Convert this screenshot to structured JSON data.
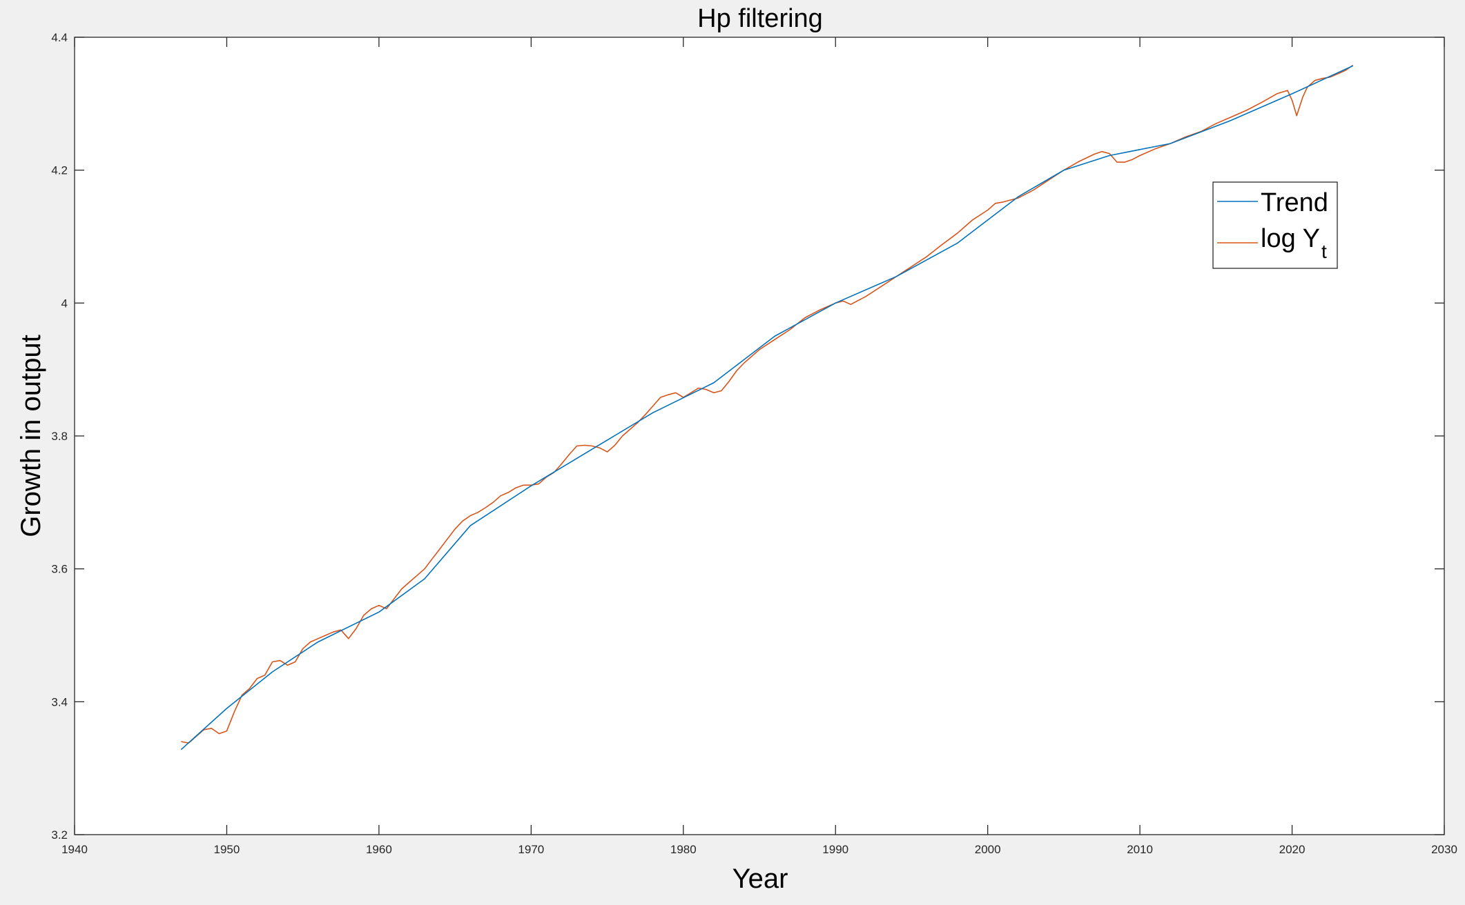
{
  "chart_data": {
    "type": "line",
    "title": "Hp filtering",
    "xlabel": "Year",
    "ylabel": "Growth in output",
    "xlim": [
      1940,
      2030
    ],
    "ylim": [
      3.2,
      4.4
    ],
    "xticks": [
      "1940",
      "1950",
      "1960",
      "1970",
      "1980",
      "1990",
      "2000",
      "2010",
      "2020",
      "2030"
    ],
    "yticks": [
      "3.2",
      "3.4",
      "3.6",
      "3.8",
      "4",
      "4.2",
      "4.4"
    ],
    "grid": false,
    "legend_position": "top-right",
    "legend": [
      {
        "label": "Trend",
        "color": "#0072BD"
      },
      {
        "label": "log Y",
        "subscript": "t",
        "color": "#D95319"
      }
    ],
    "series": [
      {
        "name": "Trend",
        "color": "#0072BD",
        "x": [
          1947,
          1950,
          1953,
          1956,
          1960,
          1963,
          1966,
          1970,
          1974,
          1978,
          1982,
          1986,
          1990,
          1994,
          1998,
          2002,
          2005,
          2008,
          2012,
          2016,
          2020,
          2024
        ],
        "y": [
          3.328,
          3.39,
          3.445,
          3.49,
          3.535,
          3.585,
          3.665,
          3.725,
          3.78,
          3.835,
          3.88,
          3.95,
          4.0,
          4.04,
          4.09,
          4.16,
          4.2,
          4.222,
          4.24,
          4.275,
          4.315,
          4.357
        ]
      },
      {
        "name": "log Y",
        "color": "#D95319",
        "x": [
          1947,
          1947.5,
          1948,
          1948.5,
          1949,
          1949.5,
          1950,
          1950.5,
          1951,
          1951.5,
          1952,
          1952.5,
          1953,
          1953.5,
          1954,
          1954.5,
          1955,
          1955.5,
          1956,
          1956.5,
          1957,
          1957.5,
          1958,
          1958.5,
          1959,
          1959.5,
          1960,
          1960.5,
          1961,
          1961.5,
          1962,
          1962.5,
          1963,
          1963.5,
          1964,
          1964.5,
          1965,
          1965.5,
          1966,
          1966.5,
          1967,
          1967.5,
          1968,
          1968.5,
          1969,
          1969.5,
          1970,
          1970.5,
          1971,
          1971.5,
          1972,
          1972.5,
          1973,
          1973.5,
          1974,
          1974.5,
          1975,
          1975.5,
          1976,
          1976.5,
          1977,
          1977.5,
          1978,
          1978.5,
          1979,
          1979.5,
          1980,
          1980.5,
          1981,
          1981.5,
          1982,
          1982.5,
          1983,
          1983.5,
          1984,
          1985,
          1986,
          1987,
          1988,
          1989,
          1990,
          1990.5,
          1991,
          1992,
          1993,
          1994,
          1995,
          1996,
          1997,
          1998,
          1999,
          2000,
          2000.5,
          2001,
          2002,
          2003,
          2004,
          2005,
          2006,
          2007,
          2007.5,
          2008,
          2008.5,
          2009,
          2009.5,
          2010,
          2011,
          2012,
          2013,
          2014,
          2015,
          2016,
          2017,
          2018,
          2019,
          2019.7,
          2020,
          2020.3,
          2020.7,
          2021,
          2021.5,
          2022,
          2022.5,
          2023,
          2023.5,
          2024
        ],
        "y": [
          3.34,
          3.338,
          3.348,
          3.358,
          3.36,
          3.352,
          3.356,
          3.385,
          3.41,
          3.42,
          3.435,
          3.44,
          3.46,
          3.462,
          3.455,
          3.46,
          3.48,
          3.49,
          3.495,
          3.5,
          3.505,
          3.508,
          3.495,
          3.51,
          3.53,
          3.54,
          3.545,
          3.54,
          3.555,
          3.57,
          3.58,
          3.59,
          3.6,
          3.615,
          3.63,
          3.645,
          3.66,
          3.672,
          3.68,
          3.685,
          3.692,
          3.7,
          3.71,
          3.715,
          3.722,
          3.726,
          3.726,
          3.728,
          3.738,
          3.745,
          3.758,
          3.772,
          3.785,
          3.786,
          3.785,
          3.782,
          3.776,
          3.786,
          3.8,
          3.81,
          3.82,
          3.832,
          3.845,
          3.858,
          3.862,
          3.865,
          3.858,
          3.865,
          3.872,
          3.87,
          3.865,
          3.868,
          3.882,
          3.898,
          3.91,
          3.93,
          3.945,
          3.96,
          3.978,
          3.99,
          4.0,
          4.003,
          3.998,
          4.01,
          4.025,
          4.04,
          4.055,
          4.07,
          4.088,
          4.105,
          4.125,
          4.14,
          4.15,
          4.152,
          4.158,
          4.17,
          4.185,
          4.2,
          4.213,
          4.224,
          4.228,
          4.225,
          4.212,
          4.212,
          4.216,
          4.222,
          4.232,
          4.24,
          4.25,
          4.258,
          4.27,
          4.28,
          4.29,
          4.302,
          4.315,
          4.32,
          4.305,
          4.282,
          4.31,
          4.325,
          4.335,
          4.338,
          4.34,
          4.345,
          4.35,
          4.358
        ]
      }
    ]
  }
}
